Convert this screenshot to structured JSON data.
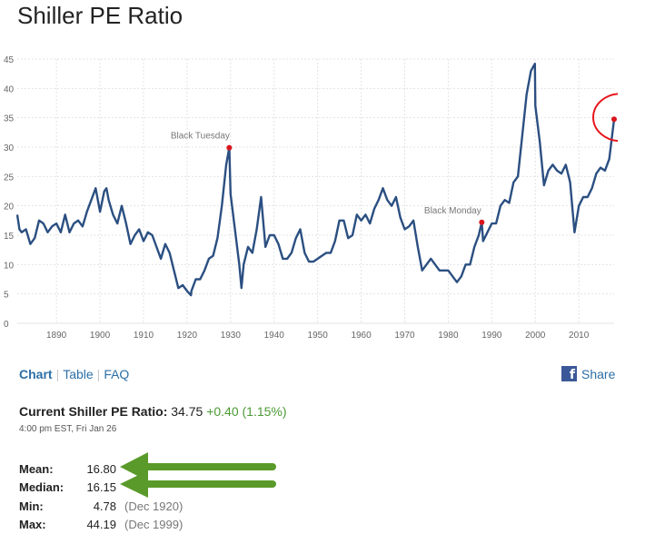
{
  "page": {
    "title": "Shiller PE Ratio"
  },
  "chart_data": {
    "type": "line",
    "title": "",
    "xlabel": "",
    "ylabel": "",
    "xlim": [
      1881,
      2018.1
    ],
    "ylim": [
      0,
      45
    ],
    "grid": true,
    "x_ticks": [
      "1890",
      "1900",
      "1910",
      "1920",
      "1930",
      "1940",
      "1950",
      "1960",
      "1970",
      "1980",
      "1990",
      "2000",
      "2010"
    ],
    "y_ticks": [
      "0",
      "5",
      "10",
      "15",
      "20",
      "25",
      "30",
      "35",
      "40",
      "45"
    ],
    "line_color": "#2b4f81",
    "series": [
      {
        "x": [
          1881,
          1881.5,
          1882,
          1883,
          1884,
          1885,
          1886,
          1887,
          1888,
          1889,
          1890,
          1891,
          1892,
          1893,
          1894,
          1895,
          1896,
          1897,
          1898,
          1899,
          1900,
          1901,
          1901.5,
          1902,
          1903,
          1904,
          1905,
          1906,
          1907,
          1908,
          1909,
          1910,
          1911,
          1912,
          1913,
          1914,
          1915,
          1916,
          1917,
          1918,
          1919,
          1920,
          1920.9,
          1921,
          1922,
          1923,
          1924,
          1925,
          1926,
          1927,
          1928,
          1929,
          1929.7,
          1930,
          1931,
          1932,
          1932.5,
          1933,
          1934,
          1935,
          1936,
          1937,
          1938,
          1939,
          1940,
          1941,
          1942,
          1943,
          1944,
          1945,
          1946,
          1947,
          1948,
          1949,
          1950,
          1951,
          1952,
          1953,
          1954,
          1955,
          1956,
          1957,
          1958,
          1959,
          1960,
          1961,
          1962,
          1963,
          1964,
          1965,
          1966,
          1967,
          1968,
          1969,
          1970,
          1971,
          1972,
          1973,
          1974,
          1975,
          1976,
          1977,
          1978,
          1979,
          1980,
          1981,
          1982,
          1983,
          1984,
          1985,
          1986,
          1987,
          1987.7,
          1988,
          1989,
          1990,
          1991,
          1992,
          1993,
          1994,
          1995,
          1996,
          1997,
          1998,
          1999,
          1999.9,
          2000,
          2001,
          2002,
          2003,
          2004,
          2005,
          2006,
          2007,
          2008,
          2009,
          2010,
          2011,
          2012,
          2013,
          2014,
          2015,
          2016,
          2017,
          2018.1
        ],
        "values": [
          18.5,
          16,
          15.5,
          16,
          13.5,
          14.5,
          17.5,
          17,
          15.5,
          16.5,
          17,
          15.5,
          18.5,
          15.5,
          17,
          17.5,
          16.5,
          19,
          21,
          23,
          19,
          22.5,
          23,
          21,
          18.5,
          17,
          20,
          17,
          13.5,
          15,
          16,
          14,
          15.5,
          15,
          13,
          11,
          13.5,
          12,
          9,
          6,
          6.5,
          5.5,
          4.78,
          5.5,
          7.5,
          7.5,
          9,
          11,
          11.5,
          14.5,
          20,
          27,
          29.9,
          22,
          16,
          10,
          6,
          10,
          13,
          12,
          16,
          21.5,
          13,
          15,
          15,
          13.5,
          11,
          11,
          12,
          14.5,
          16,
          12,
          10.5,
          10.5,
          11,
          11.5,
          12,
          12,
          14,
          17.5,
          17.5,
          14.5,
          15,
          18.5,
          17.5,
          18.5,
          17,
          19.5,
          21,
          23,
          21,
          20,
          21.5,
          18,
          16,
          16.5,
          17.5,
          13,
          9,
          10,
          11,
          10,
          9,
          9,
          9,
          8,
          7,
          8,
          10,
          10,
          13,
          15,
          17.2,
          14,
          15.5,
          17,
          17,
          20,
          21,
          20.5,
          24,
          25,
          32,
          39,
          43,
          44.19,
          37,
          31,
          23.5,
          26,
          27,
          26,
          25.5,
          27,
          24,
          15.5,
          20,
          21.5,
          21.5,
          23,
          25.5,
          26.5,
          26,
          28,
          34.75
        ]
      }
    ],
    "annotations": [
      {
        "text": "Black Tuesday",
        "x": 1929.7,
        "y": 29.9
      },
      {
        "text": "Black Monday",
        "x": 1987.7,
        "y": 17.2
      }
    ],
    "current_point": {
      "x": 2018.1,
      "y": 34.75,
      "label": "34.75"
    },
    "marker_color": "#d9141c",
    "highlight_circle_color": "#e8161d"
  },
  "tabs": {
    "chart": "Chart",
    "table": "Table",
    "faq": "FAQ",
    "separator": "|"
  },
  "share": {
    "icon": "facebook-icon",
    "icon_glyph": "f",
    "label": "Share",
    "color": "#3b5998"
  },
  "current": {
    "label": "Current Shiller PE Ratio:",
    "value": "34.75",
    "change": "+0.40 (1.15%)",
    "timestamp": "4:00 pm EST, Fri Jan 26"
  },
  "stats": [
    {
      "label": "Mean:",
      "value": "16.80",
      "date": ""
    },
    {
      "label": "Median:",
      "value": "16.15",
      "date": ""
    },
    {
      "label": "Min:",
      "value": "4.78",
      "date": "(Dec 1920)"
    },
    {
      "label": "Max:",
      "value": "44.19",
      "date": "(Dec 1999)"
    }
  ],
  "arrow_color": "#5a9a2a"
}
